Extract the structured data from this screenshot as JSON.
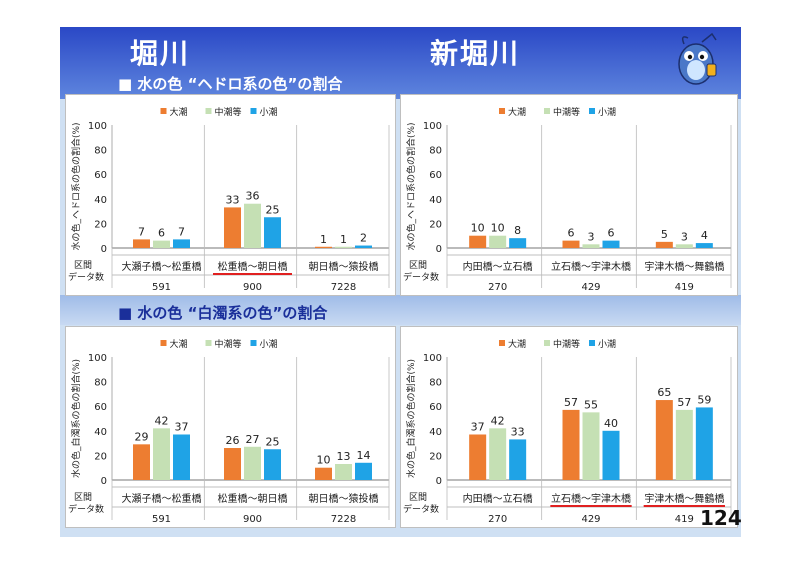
{
  "titles": {
    "left": "堀川",
    "right": "新堀川"
  },
  "sections": {
    "top": "■ 水の色 “ヘドロ系の色”の割合",
    "bottom": "■ 水の色 “白濁系の色”の割合"
  },
  "legend": [
    "大潮",
    "中潮等",
    "小潮"
  ],
  "axis_row_labels": {
    "section": "区間",
    "count": "データ数"
  },
  "page_number": "124",
  "colors": {
    "series": [
      "#ed7d31",
      "#c5e0b4",
      "#1fa3e6"
    ],
    "highlight": "#e02020"
  },
  "chart_data": [
    {
      "type": "bar",
      "title": "堀川 水の色 ヘドロ系の色の割合",
      "ylabel": "水の色_ヘドロ系の色の割合(%)",
      "ylim": [
        0,
        100
      ],
      "yticks": [
        0,
        20,
        40,
        60,
        80,
        100
      ],
      "categories": [
        "大瀬子橋～松重橋",
        "松重橋～朝日橋",
        "朝日橋～猿投橋"
      ],
      "counts": [
        "591",
        "900",
        "7228"
      ],
      "highlight": [
        1
      ],
      "series": [
        {
          "name": "大潮",
          "values": [
            7,
            33,
            1
          ]
        },
        {
          "name": "中潮等",
          "values": [
            6,
            36,
            1
          ]
        },
        {
          "name": "小潮",
          "values": [
            7,
            25,
            2
          ]
        }
      ]
    },
    {
      "type": "bar",
      "title": "新堀川 水の色 ヘドロ系の色の割合",
      "ylabel": "水の色_ヘドロ系の色の割合(%)",
      "ylim": [
        0,
        100
      ],
      "yticks": [
        0,
        20,
        40,
        60,
        80,
        100
      ],
      "categories": [
        "内田橋～立石橋",
        "立石橋～宇津木橋",
        "宇津木橋～舞鶴橋"
      ],
      "counts": [
        "270",
        "429",
        "419"
      ],
      "highlight": [],
      "series": [
        {
          "name": "大潮",
          "values": [
            10,
            6,
            5
          ]
        },
        {
          "name": "中潮等",
          "values": [
            10,
            3,
            3
          ]
        },
        {
          "name": "小潮",
          "values": [
            8,
            6,
            4
          ]
        }
      ]
    },
    {
      "type": "bar",
      "title": "堀川 水の色 白濁系の色の割合",
      "ylabel": "水の色_白濁系の色の割合(%)",
      "ylim": [
        0,
        100
      ],
      "yticks": [
        0,
        20,
        40,
        60,
        80,
        100
      ],
      "categories": [
        "大瀬子橋～松重橋",
        "松重橋～朝日橋",
        "朝日橋～猿投橋"
      ],
      "counts": [
        "591",
        "900",
        "7228"
      ],
      "highlight": [],
      "series": [
        {
          "name": "大潮",
          "values": [
            29,
            26,
            10
          ]
        },
        {
          "name": "中潮等",
          "values": [
            42,
            27,
            13
          ]
        },
        {
          "name": "小潮",
          "values": [
            37,
            25,
            14
          ]
        }
      ]
    },
    {
      "type": "bar",
      "title": "新堀川 水の色 白濁系の色の割合",
      "ylabel": "水の色_白濁系の色の割合(%)",
      "ylim": [
        0,
        100
      ],
      "yticks": [
        0,
        20,
        40,
        60,
        80,
        100
      ],
      "categories": [
        "内田橋～立石橋",
        "立石橋～宇津木橋",
        "宇津木橋～舞鶴橋"
      ],
      "counts": [
        "270",
        "429",
        "419"
      ],
      "highlight": [
        1,
        2
      ],
      "series": [
        {
          "name": "大潮",
          "values": [
            37,
            57,
            65
          ]
        },
        {
          "name": "中潮等",
          "values": [
            42,
            55,
            57
          ]
        },
        {
          "name": "小潮",
          "values": [
            33,
            40,
            59
          ]
        }
      ]
    }
  ]
}
